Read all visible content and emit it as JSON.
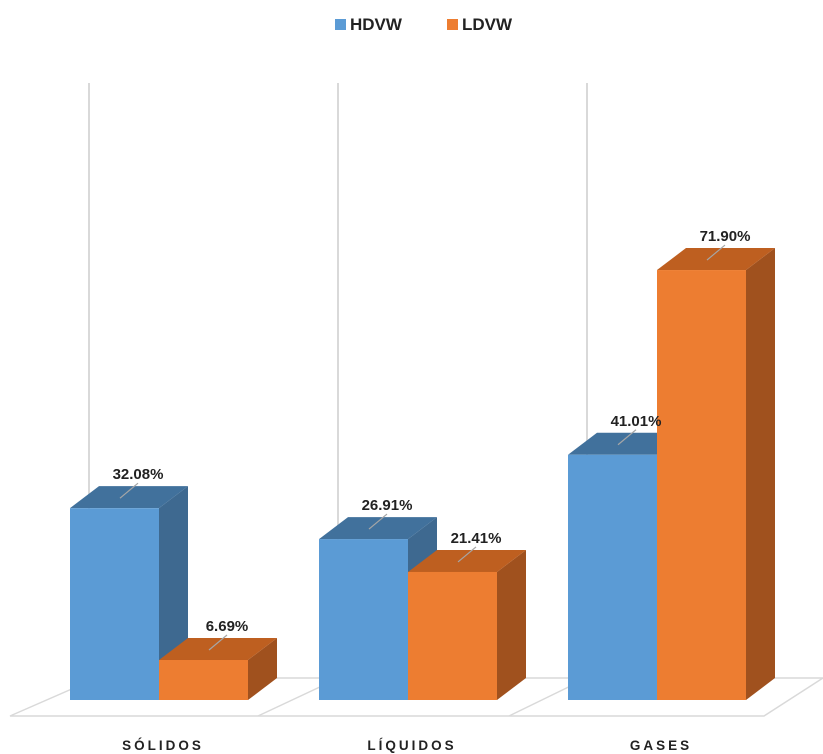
{
  "chart_data": {
    "type": "bar",
    "three_d": true,
    "categories": [
      "SÓLIDOS",
      "LÍQUIDOS",
      "GASES"
    ],
    "series": [
      {
        "name": "HDVW",
        "values": [
          32.08,
          26.91,
          41.01
        ],
        "labels": [
          "32.08%",
          "26.91%",
          "41.01%"
        ],
        "color": "#5B9BD5",
        "side_color": "#3E6990",
        "top_color": "#41719C"
      },
      {
        "name": "LDVW",
        "values": [
          6.69,
          21.41,
          71.9
        ],
        "labels": [
          "6.69%",
          "21.41%",
          "71.90%"
        ],
        "color": "#ED7D31",
        "side_color": "#A0511E",
        "top_color": "#BE5F20"
      }
    ],
    "title": "",
    "xlabel": "",
    "ylabel": "",
    "ylim": [
      0,
      100
    ],
    "grid": true,
    "legend_position": "top"
  }
}
